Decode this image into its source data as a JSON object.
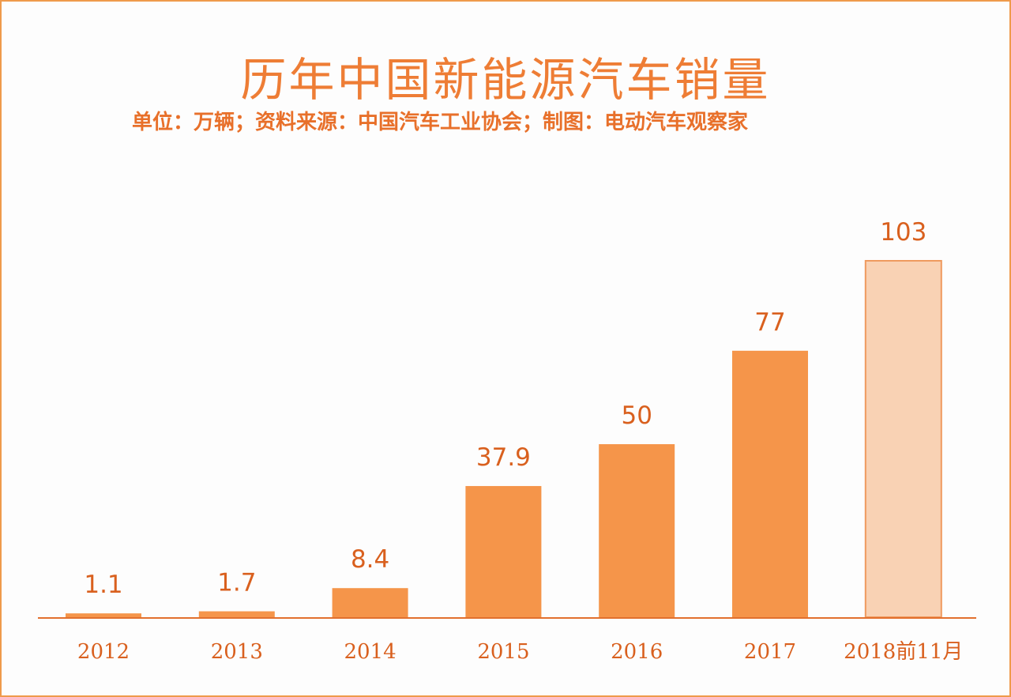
{
  "chart_data": {
    "type": "bar",
    "title": "历年中国新能源汽车销量",
    "subtitle": "单位：万辆；资料来源：中国汽车工业协会；制图：电动汽车观察家",
    "categories": [
      "2012",
      "2013",
      "2014",
      "2015",
      "2016",
      "2017",
      "2018前11月"
    ],
    "values": [
      1.1,
      1.7,
      8.4,
      37.9,
      50,
      77,
      103
    ],
    "value_labels": [
      "1.1",
      "1.7",
      "8.4",
      "37.9",
      "50",
      "77",
      "103"
    ],
    "xlabel": "",
    "ylabel": "",
    "ylim": [
      0,
      103
    ],
    "grid": false,
    "legend": "none",
    "colors": {
      "bar": "#f5954a",
      "bar_highlight": "#f9d2b4",
      "bar_highlight_border": "#ef9a5e",
      "axis": "#e2702e",
      "text": "#d9601e"
    }
  }
}
